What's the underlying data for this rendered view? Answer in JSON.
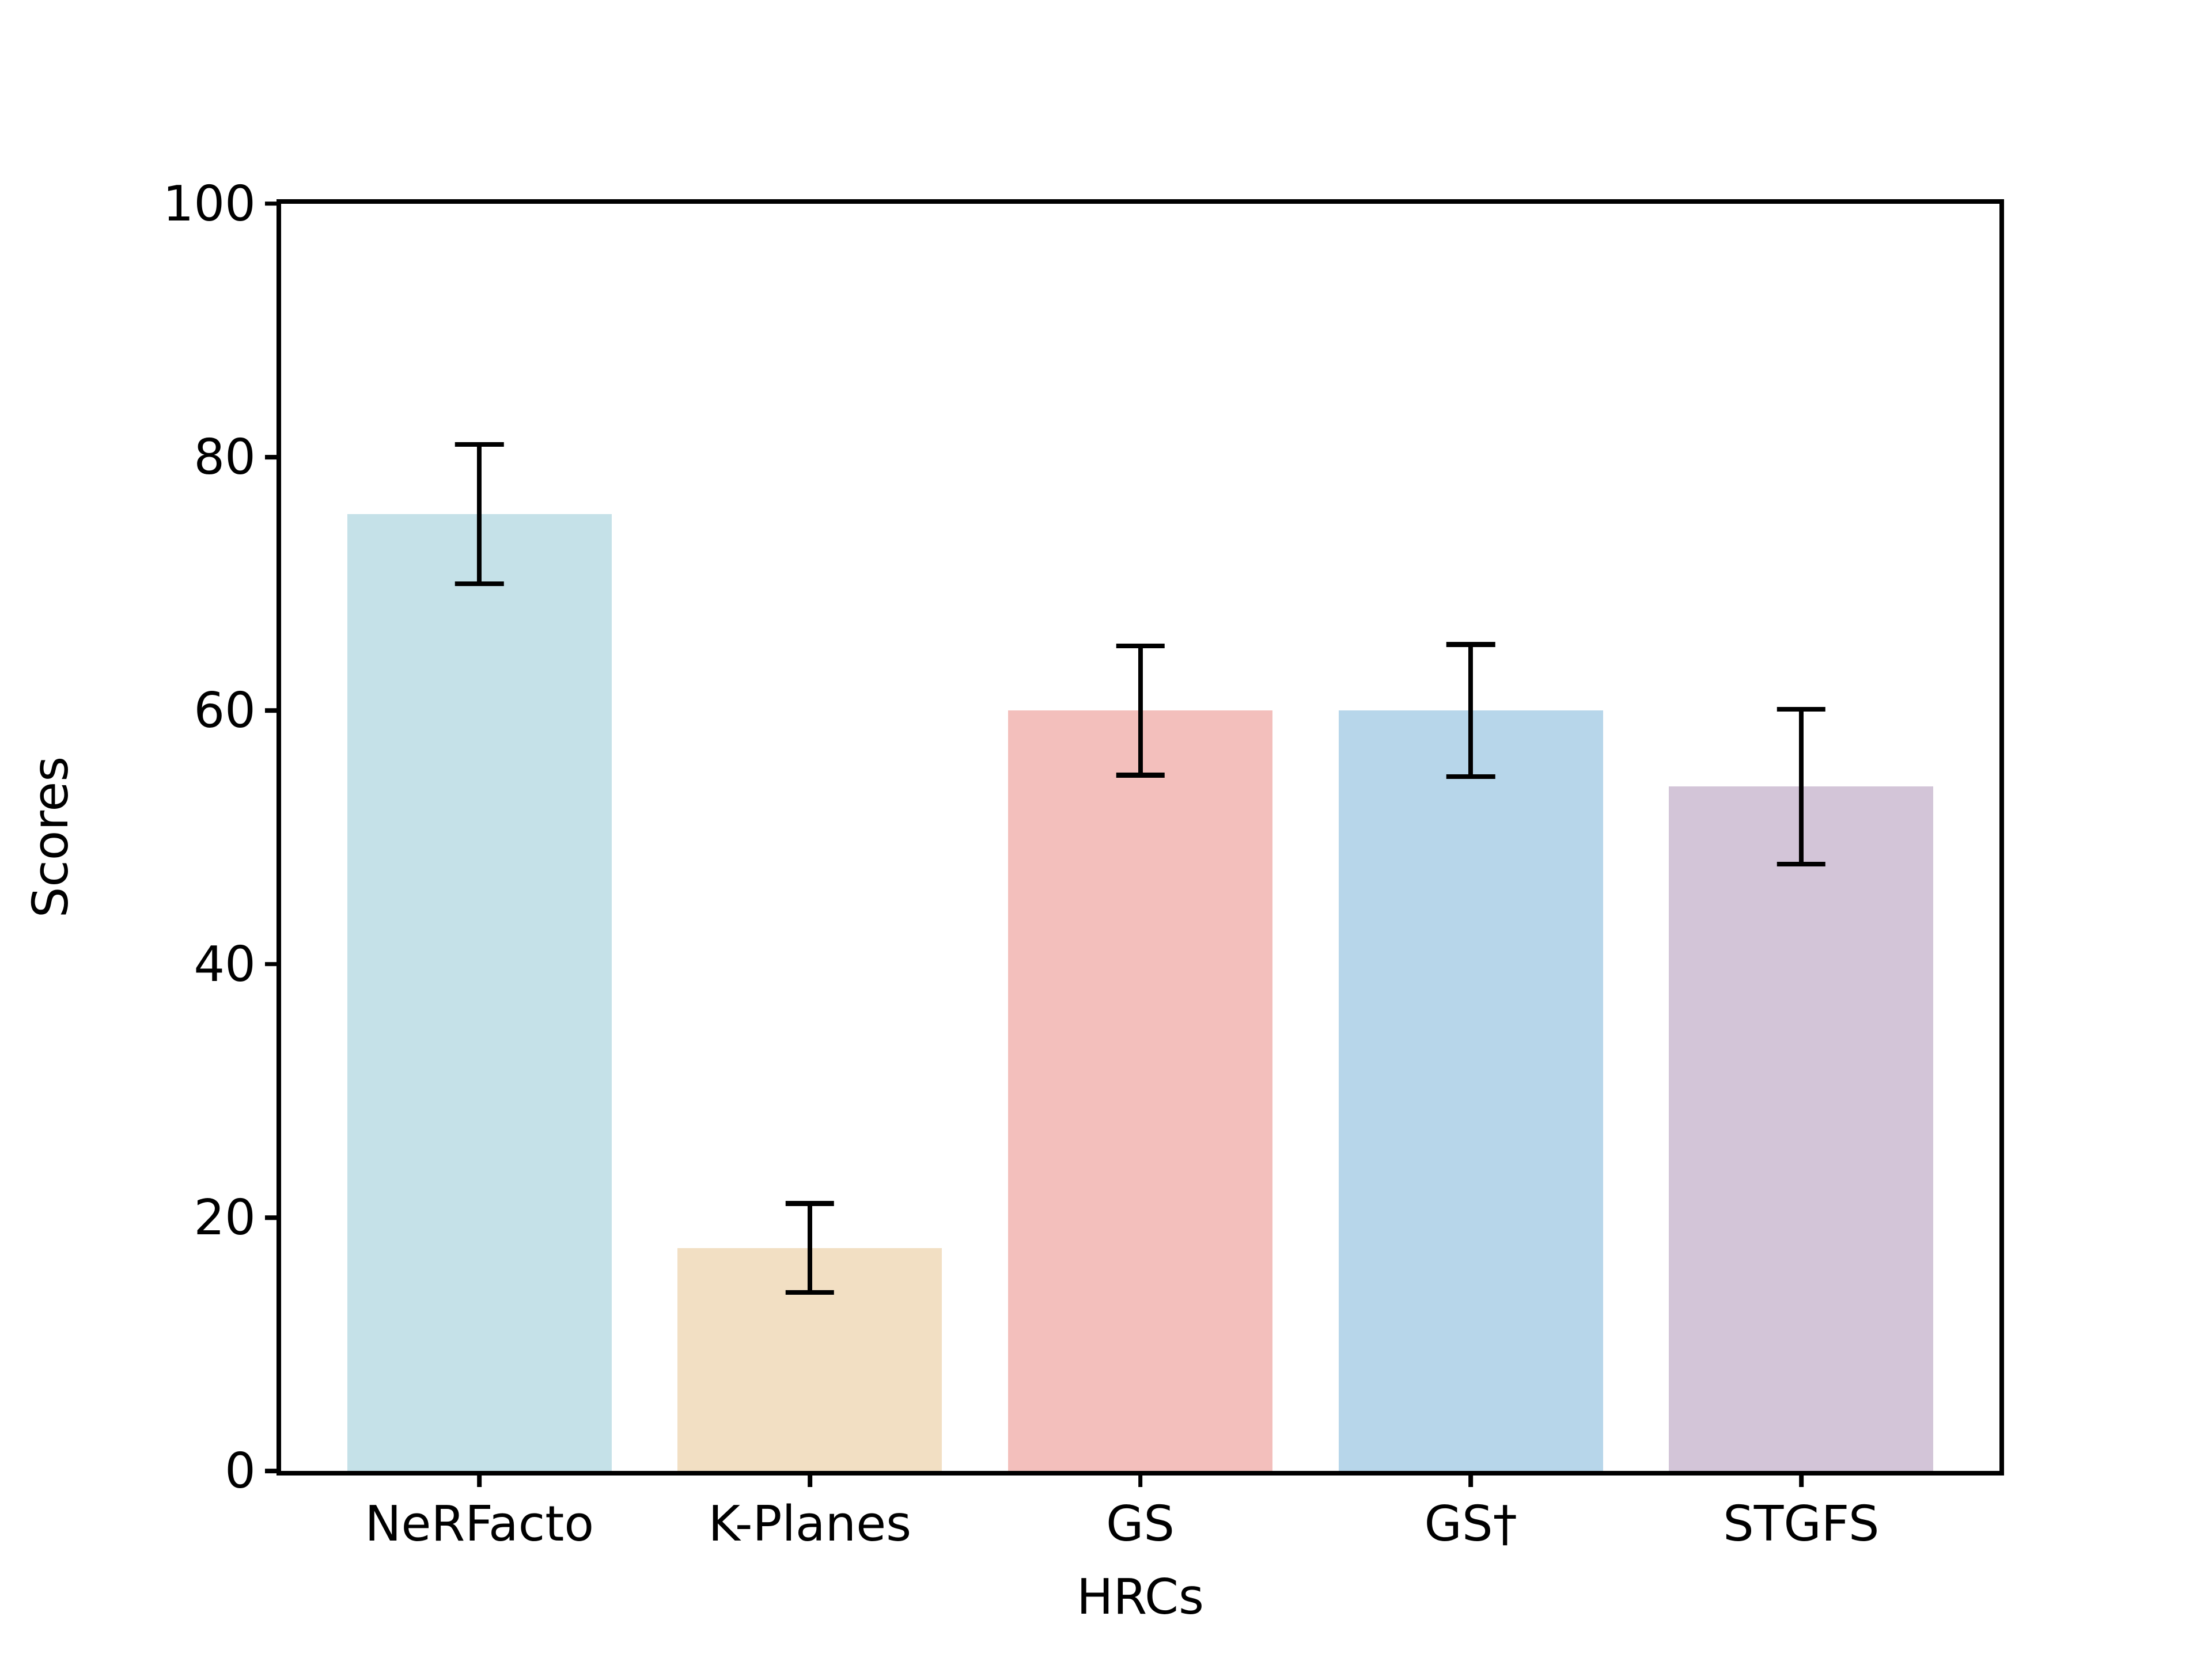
{
  "figure": {
    "background": "#ffffff",
    "spine_color": "#000000",
    "text_color": "#000000"
  },
  "chart_data": {
    "type": "bar",
    "title": "",
    "xlabel": "HRCs",
    "ylabel": "Scores",
    "ylim": [
      0,
      100
    ],
    "yticks": [
      0,
      20,
      40,
      60,
      80,
      100
    ],
    "grid": false,
    "legend": null,
    "categories": [
      "NeRFacto",
      "K-Planes",
      "GS",
      "GS†",
      "STGFS"
    ],
    "values": [
      75.5,
      17.6,
      60.0,
      60.0,
      54.0
    ],
    "errors": [
      5.7,
      3.7,
      5.3,
      5.4,
      6.3
    ],
    "bar_colors": [
      "#c5e1e8",
      "#f2dfc3",
      "#f3bfbc",
      "#b7d6ea",
      "#d3c5d8"
    ],
    "error_color": "#000000"
  }
}
